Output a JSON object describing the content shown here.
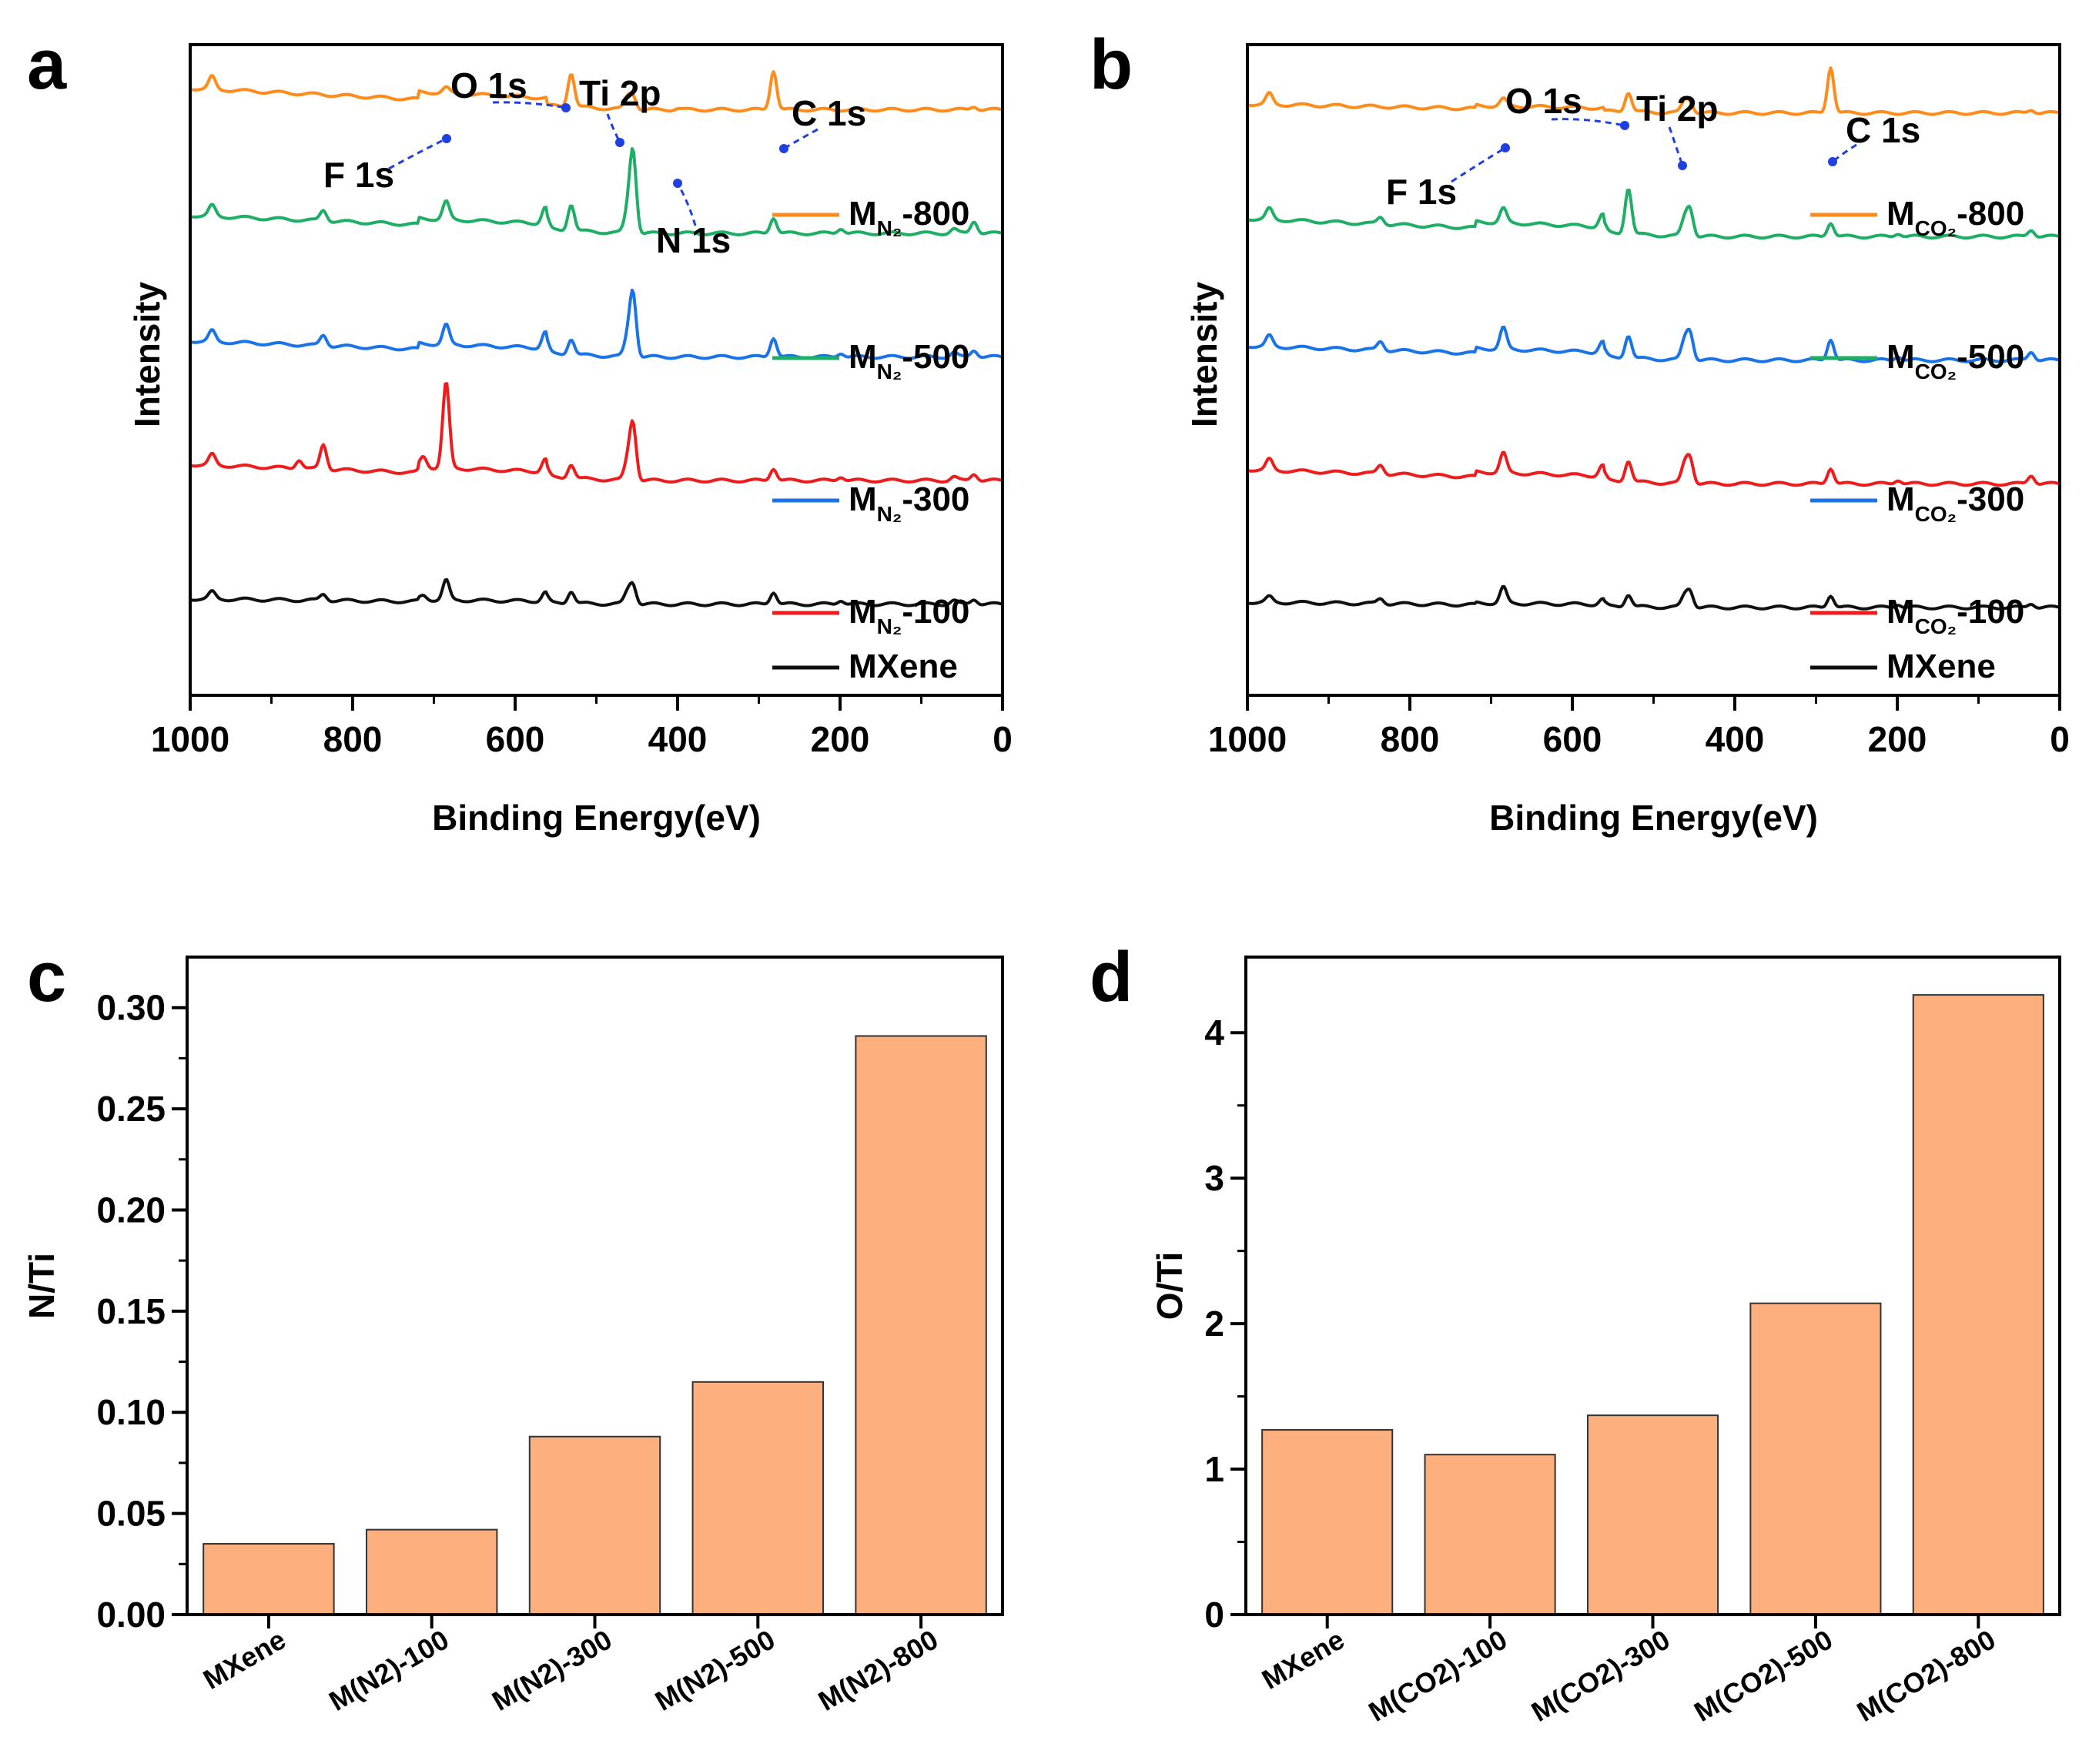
{
  "figure": {
    "panels": [
      "a",
      "b",
      "c",
      "d"
    ]
  },
  "chart_data": [
    {
      "panel": "a",
      "type": "line",
      "xlabel": "Binding Energy(eV)",
      "ylabel": "Intensity",
      "xlim": [
        1000,
        0
      ],
      "xticks": [
        1000,
        800,
        600,
        400,
        200,
        0
      ],
      "y_ticks_shown": false,
      "legend": {
        "position": "right",
        "entries": [
          {
            "base": "M",
            "sub": "N₂",
            "suffix": "-800",
            "color": "#ff8c1a"
          },
          {
            "base": "M",
            "sub": "N₂",
            "suffix": "-500",
            "color": "#1fae66"
          },
          {
            "base": "M",
            "sub": "N₂",
            "suffix": "-300",
            "color": "#1a74e8"
          },
          {
            "base": "M",
            "sub": "N₂",
            "suffix": "-100",
            "color": "#ee1c1c"
          },
          {
            "base": "MXene",
            "sub": "",
            "suffix": "",
            "color": "#111111"
          }
        ]
      },
      "annotations": [
        "O 1s",
        "Ti 2p",
        "C 1s",
        "F 1s",
        "N 1s"
      ],
      "series": [
        {
          "name": "MXene",
          "color": "#111111",
          "offset": 0.0,
          "slope": 0.15,
          "peaks": [
            [
              973,
              0.2
            ],
            [
              836,
              0.18
            ],
            [
              713,
              0.12
            ],
            [
              685,
              0.55
            ],
            [
              563,
              0.25
            ],
            [
              531,
              0.35
            ],
            [
              462,
              0.3
            ],
            [
              455,
              0.55
            ],
            [
              282,
              0.35
            ],
            [
              199,
              0.12
            ],
            [
              60,
              0.1
            ],
            [
              35,
              0.15
            ]
          ]
        },
        {
          "name": "M(N2)-100",
          "color": "#ee1c1c",
          "offset": 1.0,
          "slope": 0.45,
          "peaks": [
            [
              973,
              0.3
            ],
            [
              836,
              0.7
            ],
            [
              866,
              0.25
            ],
            [
              713,
              0.3
            ],
            [
              685,
              2.4
            ],
            [
              563,
              0.35
            ],
            [
              531,
              0.4
            ],
            [
              462,
              0.45
            ],
            [
              455,
              1.6
            ],
            [
              282,
              0.35
            ],
            [
              199,
              0.12
            ],
            [
              60,
              0.1
            ],
            [
              35,
              0.2
            ]
          ]
        },
        {
          "name": "M(N2)-300",
          "color": "#1a74e8",
          "offset": 2.0,
          "slope": 0.45,
          "peaks": [
            [
              973,
              0.3
            ],
            [
              836,
              0.3
            ],
            [
              685,
              0.55
            ],
            [
              563,
              0.45
            ],
            [
              531,
              0.45
            ],
            [
              462,
              0.45
            ],
            [
              455,
              1.8
            ],
            [
              282,
              0.55
            ],
            [
              199,
              0.12
            ],
            [
              60,
              0.12
            ],
            [
              35,
              0.2
            ]
          ]
        },
        {
          "name": "M(N2)-500",
          "color": "#1fae66",
          "offset": 3.0,
          "slope": 0.5,
          "peaks": [
            [
              973,
              0.3
            ],
            [
              836,
              0.3
            ],
            [
              685,
              0.5
            ],
            [
              563,
              0.45
            ],
            [
              531,
              0.75
            ],
            [
              462,
              0.5
            ],
            [
              455,
              2.3
            ],
            [
              282,
              0.45
            ],
            [
              199,
              0.15
            ],
            [
              60,
              0.12
            ],
            [
              35,
              0.35
            ]
          ]
        },
        {
          "name": "M(N2)-800",
          "color": "#ff8c1a",
          "offset": 4.25,
          "slope": 0.6,
          "peaks": [
            [
              973,
              0.35
            ],
            [
              685,
              0.15
            ],
            [
              531,
              0.95
            ],
            [
              462,
              0.3
            ],
            [
              455,
              0.4
            ],
            [
              400,
              0.04
            ],
            [
              282,
              1.1
            ],
            [
              35,
              0.1
            ]
          ]
        }
      ]
    },
    {
      "panel": "b",
      "type": "line",
      "xlabel": "Binding Energy(eV)",
      "ylabel": "Intensity",
      "xlim": [
        1000,
        0
      ],
      "xticks": [
        1000,
        800,
        600,
        400,
        200,
        0
      ],
      "y_ticks_shown": false,
      "legend": {
        "position": "right",
        "entries": [
          {
            "base": "M",
            "sub": "CO₂",
            "suffix": "-800",
            "color": "#ff8c1a"
          },
          {
            "base": "M",
            "sub": "CO₂",
            "suffix": "-500",
            "color": "#1fae66"
          },
          {
            "base": "M",
            "sub": "CO₂",
            "suffix": "-300",
            "color": "#1a74e8"
          },
          {
            "base": "M",
            "sub": "CO₂",
            "suffix": "-100",
            "color": "#ee1c1c"
          },
          {
            "base": "MXene",
            "sub": "",
            "suffix": "",
            "color": "#111111"
          }
        ]
      },
      "annotations": [
        "O 1s",
        "Ti 2p",
        "C 1s",
        "F 1s"
      ],
      "series": [
        {
          "name": "MXene",
          "color": "#111111",
          "offset": 0.0,
          "slope": 0.15,
          "peaks": [
            [
              973,
              0.15
            ],
            [
              836,
              0.15
            ],
            [
              685,
              0.45
            ],
            [
              563,
              0.15
            ],
            [
              531,
              0.35
            ],
            [
              462,
              0.3
            ],
            [
              455,
              0.45
            ],
            [
              282,
              0.35
            ],
            [
              199,
              0.1
            ],
            [
              35,
              0.12
            ]
          ]
        },
        {
          "name": "M(CO2)-100",
          "color": "#ee1c1c",
          "offset": 1.0,
          "slope": 0.4,
          "peaks": [
            [
              973,
              0.3
            ],
            [
              836,
              0.25
            ],
            [
              685,
              0.55
            ],
            [
              563,
              0.3
            ],
            [
              531,
              0.6
            ],
            [
              462,
              0.5
            ],
            [
              455,
              0.7
            ],
            [
              282,
              0.45
            ],
            [
              199,
              0.12
            ],
            [
              35,
              0.25
            ]
          ]
        },
        {
          "name": "M(CO2)-300",
          "color": "#1a74e8",
          "offset": 2.0,
          "slope": 0.4,
          "peaks": [
            [
              973,
              0.3
            ],
            [
              836,
              0.25
            ],
            [
              685,
              0.6
            ],
            [
              563,
              0.3
            ],
            [
              531,
              0.65
            ],
            [
              462,
              0.5
            ],
            [
              455,
              0.75
            ],
            [
              282,
              0.6
            ],
            [
              199,
              0.12
            ],
            [
              35,
              0.25
            ]
          ]
        },
        {
          "name": "M(CO2)-500",
          "color": "#1fae66",
          "offset": 3.0,
          "slope": 0.5,
          "peaks": [
            [
              973,
              0.3
            ],
            [
              836,
              0.2
            ],
            [
              685,
              0.4
            ],
            [
              563,
              0.35
            ],
            [
              531,
              1.3
            ],
            [
              462,
              0.45
            ],
            [
              455,
              0.75
            ],
            [
              282,
              0.4
            ],
            [
              199,
              0.1
            ],
            [
              35,
              0.2
            ]
          ]
        },
        {
          "name": "M(CO2)-800",
          "color": "#ff8c1a",
          "offset": 4.15,
          "slope": 0.25,
          "peaks": [
            [
              973,
              0.3
            ],
            [
              685,
              0.2
            ],
            [
              531,
              0.55
            ],
            [
              462,
              0.3
            ],
            [
              455,
              0.3
            ],
            [
              282,
              1.3
            ],
            [
              35,
              0.1
            ]
          ]
        }
      ]
    },
    {
      "panel": "c",
      "type": "bar",
      "ylabel": "N/Ti",
      "xlabel": "",
      "categories": [
        "MXene",
        "M(N2)-100",
        "M(N2)-300",
        "M(N2)-500",
        "M(N2)-800"
      ],
      "values": [
        0.035,
        0.042,
        0.088,
        0.115,
        0.286
      ],
      "ylim": [
        0,
        0.325
      ],
      "yticks": [
        0.0,
        0.05,
        0.1,
        0.15,
        0.2,
        0.25,
        0.3
      ],
      "ytick_labels": [
        "0.00",
        "0.05",
        "0.10",
        "0.15",
        "0.20",
        "0.25",
        "0.30"
      ],
      "bar_color": "#fdb07e"
    },
    {
      "panel": "d",
      "type": "bar",
      "ylabel": "O/Ti",
      "xlabel": "",
      "categories": [
        "MXene",
        "M(CO2)-100",
        "M(CO2)-300",
        "M(CO2)-500",
        "M(CO2)-800"
      ],
      "values": [
        1.27,
        1.1,
        1.37,
        2.14,
        4.26
      ],
      "ylim": [
        0,
        4.52
      ],
      "yticks": [
        0,
        1,
        2,
        3,
        4
      ],
      "ytick_labels": [
        "0",
        "1",
        "2",
        "3",
        "4"
      ],
      "bar_color": "#fdb07e"
    }
  ]
}
